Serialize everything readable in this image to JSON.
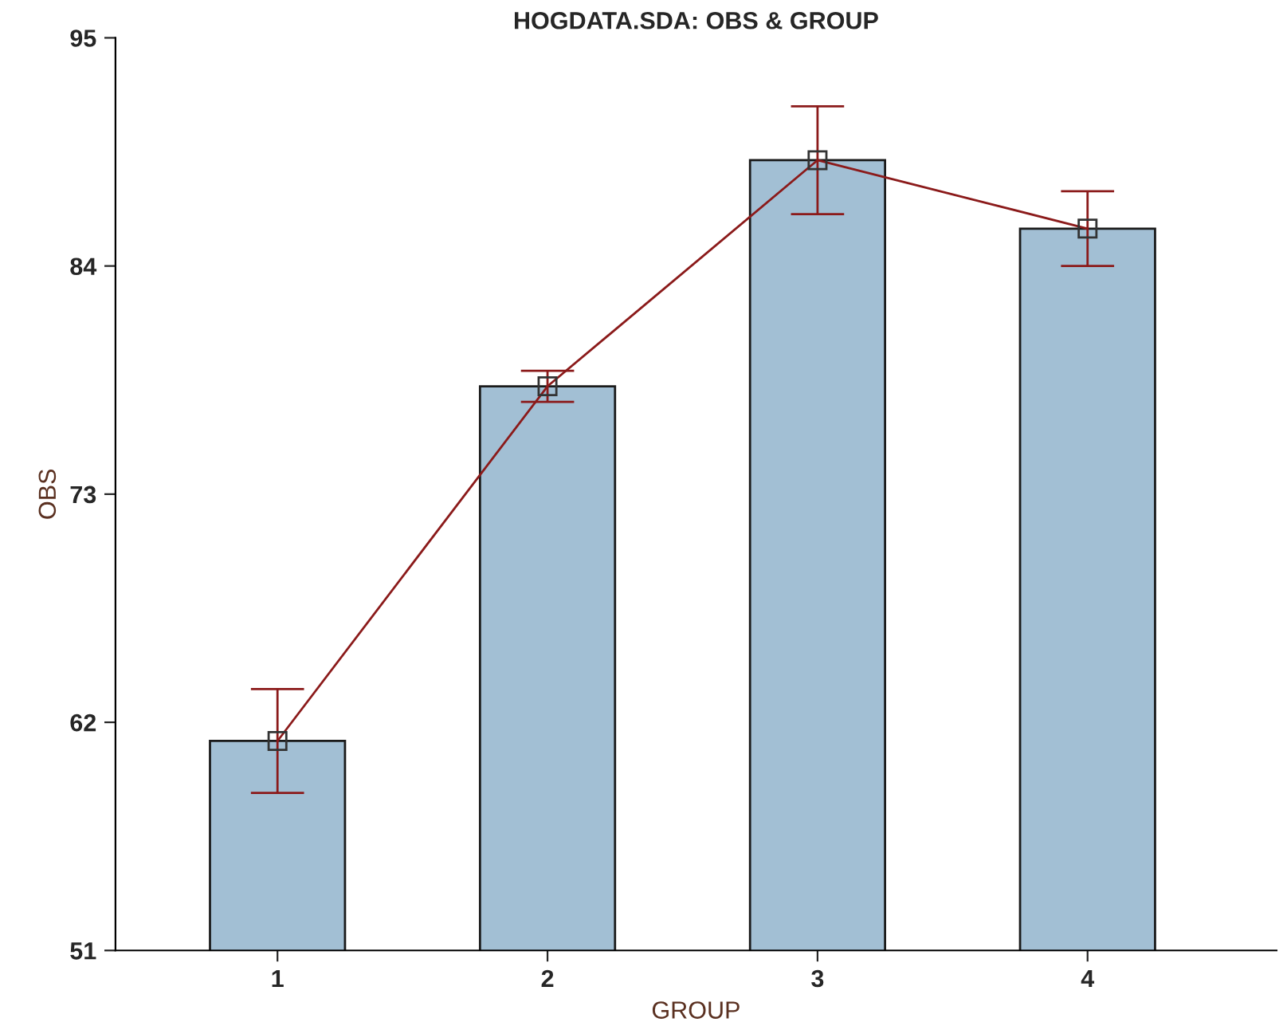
{
  "chart_data": {
    "type": "bar",
    "title": "HOGDATA.SDA: OBS & GROUP",
    "xlabel": "GROUP",
    "ylabel": "OBS",
    "categories": [
      "1",
      "2",
      "3",
      "4"
    ],
    "series": [
      {
        "color": "#a2bfd4",
        "values": [
          61.1,
          78.2,
          89.1,
          85.8
        ]
      },
      {
        "type": "line",
        "color": "#8b1a1a",
        "values": [
          61.1,
          78.2,
          89.1,
          85.8
        ],
        "errors": [
          2.5,
          0.75,
          2.6,
          1.8
        ],
        "marker": "square"
      }
    ],
    "ylim": [
      51,
      95
    ],
    "yticks": [
      51,
      62,
      73,
      84,
      95
    ],
    "grid": false,
    "legend": false
  }
}
